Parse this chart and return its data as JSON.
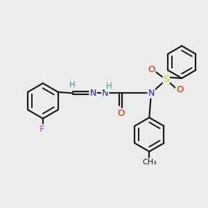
{
  "bg_color": "#ececec",
  "bond_color": "#1a1a1a",
  "bond_width": 1.6,
  "F_color": "#cc44cc",
  "N_color": "#1a1acc",
  "O_color": "#cc2200",
  "S_color": "#cccc00",
  "H_color": "#4a9090",
  "figsize": [
    3.0,
    3.0
  ],
  "dpi": 100,
  "xlim": [
    -0.5,
    9.5
  ],
  "ylim": [
    0.5,
    8.5
  ]
}
